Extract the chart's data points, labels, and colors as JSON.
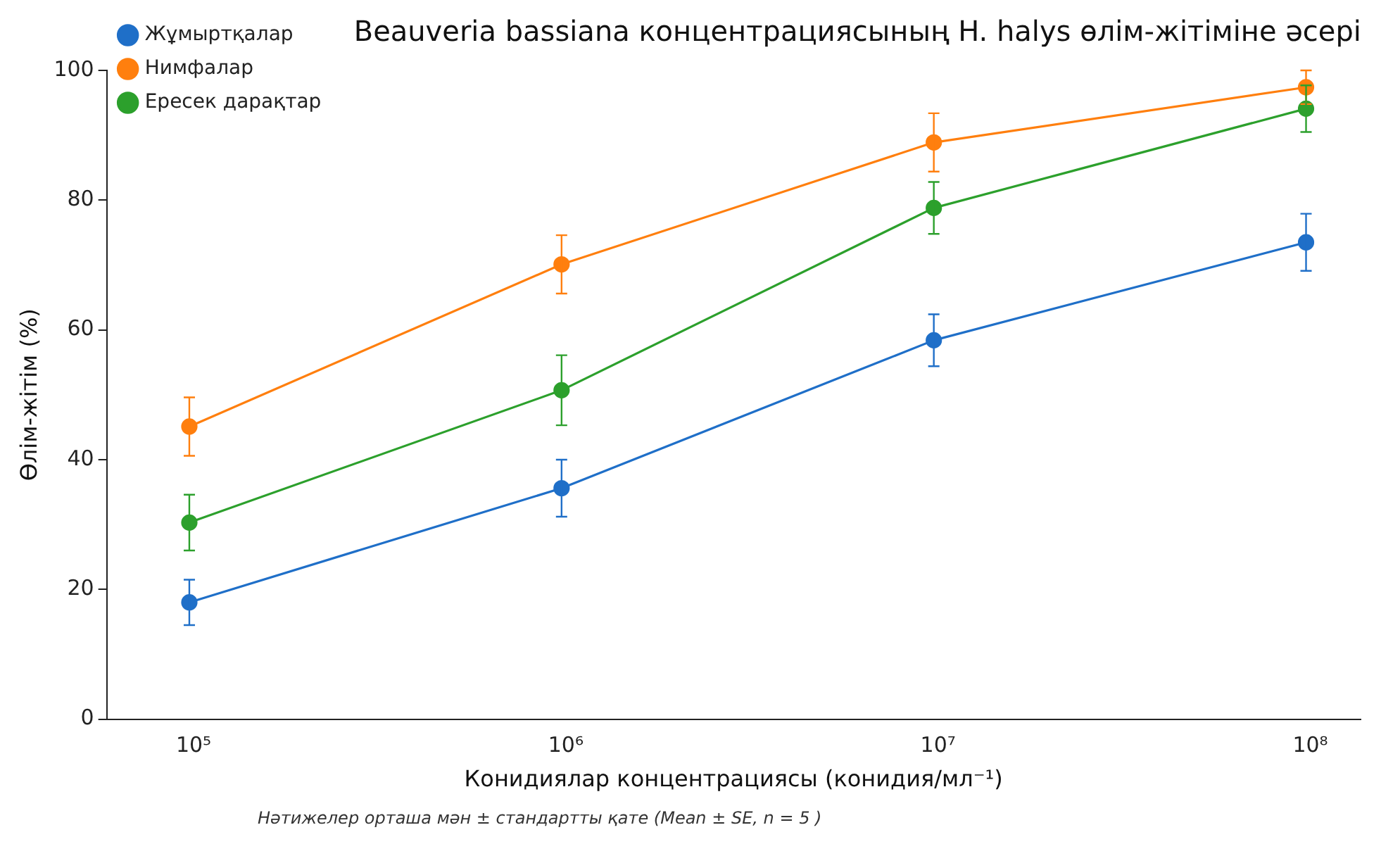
{
  "chart_data": {
    "type": "line",
    "title": "Beauveria bassiana концентрациясының H. halys өлім-жітіміне әсері",
    "xlabel": "Конидиялар концентрациясы (конидия/мл⁻¹)",
    "ylabel": "Өлім-жітім (%)",
    "annotations": [
      "Нәтижелер орташа мән ± стандартты қате (Mean ± SE, n = 5 )"
    ],
    "x": [
      100000,
      1000000,
      10000000,
      100000000
    ],
    "log": "x",
    "xlim": [
      60000,
      140000000
    ],
    "xticks": [
      {
        "value": 100000,
        "label": "10⁵"
      },
      {
        "value": 1000000,
        "label": "10⁶"
      },
      {
        "value": 10000000,
        "label": "10⁷"
      },
      {
        "value": 100000000,
        "label": "10⁸"
      }
    ],
    "ylim": [
      0,
      100
    ],
    "yticks": [
      0,
      20,
      40,
      60,
      80,
      100
    ],
    "grid": false,
    "legend": "top left",
    "marker": "circle",
    "line_style": "solid",
    "series": [
      {
        "name": "Жұмыртқалар",
        "color": "#1f6fc8",
        "values": [
          18,
          35.6,
          58.4,
          73.5
        ],
        "errors": [
          3.5,
          4.4,
          4,
          4.4
        ]
      },
      {
        "name": "Нимфалар",
        "color": "#ff7f0e",
        "values": [
          45.1,
          70.1,
          88.9,
          97.4
        ],
        "errors": [
          4.5,
          4.5,
          4.5,
          2.6
        ]
      },
      {
        "name": "Ересек дарақтар",
        "color": "#2ca02c",
        "values": [
          30.3,
          50.7,
          78.8,
          94.1
        ],
        "errors": [
          4.3,
          5.4,
          4,
          3.6
        ]
      }
    ]
  }
}
